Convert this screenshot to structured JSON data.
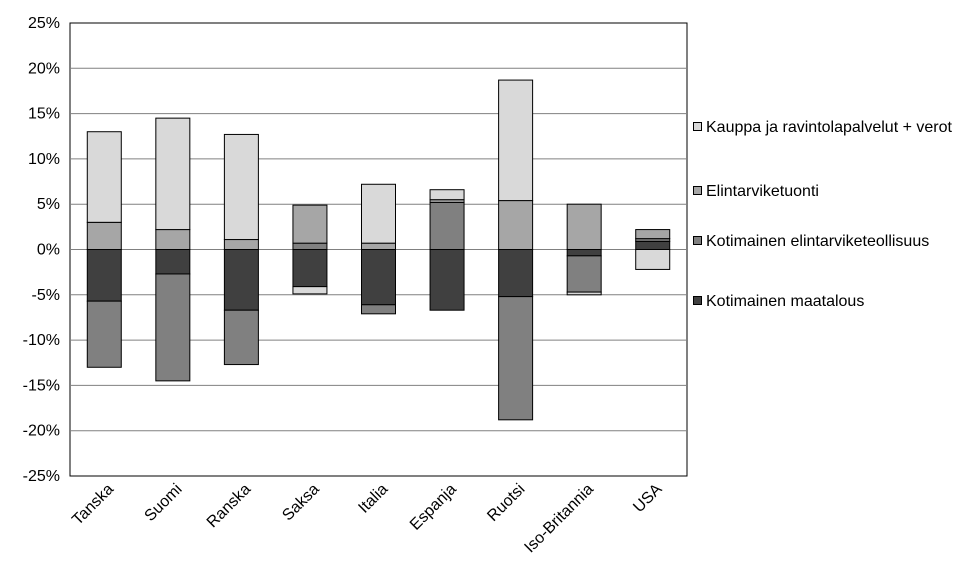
{
  "chart_data": {
    "type": "bar",
    "stacked": true,
    "categories": [
      "Tanska",
      "Suomi",
      "Ranska",
      "Saksa",
      "Italia",
      "Espanja",
      "Ruotsi",
      "Iso-Britannia",
      "USA"
    ],
    "ylim": [
      -25,
      25
    ],
    "yticks": [
      25,
      20,
      15,
      10,
      5,
      0,
      -5,
      -10,
      -15,
      -20,
      -25
    ],
    "ytick_labels": [
      "25%",
      "20%",
      "15%",
      "10%",
      "5%",
      "0%",
      "-5%",
      "-10%",
      "-15%",
      "-20%",
      "-25%"
    ],
    "grid": true,
    "legend_position": "right",
    "series": [
      {
        "name": "Kotimainen maatalous",
        "color": "#404040",
        "values": [
          -5.7,
          -2.7,
          -6.7,
          -4.1,
          -6.1,
          -6.7,
          -5.2,
          -0.7,
          0.9
        ]
      },
      {
        "name": "Kotimainen elintarviketeollisuus",
        "color": "#808080",
        "values": [
          -7.3,
          -11.8,
          -6.0,
          0.7,
          -1.0,
          5.2,
          -13.6,
          -4.0,
          0.3
        ]
      },
      {
        "name": "Elintarviketuonti",
        "color": "#a6a6a6",
        "values": [
          3.0,
          2.2,
          1.1,
          4.2,
          0.7,
          0.3,
          5.4,
          5.0,
          1.0
        ]
      },
      {
        "name": "Kauppa ja ravintolapalvelut + verot",
        "color": "#d9d9d9",
        "values": [
          10.0,
          12.3,
          11.6,
          -0.8,
          6.5,
          1.1,
          13.3,
          -0.3,
          -2.2
        ]
      }
    ]
  }
}
